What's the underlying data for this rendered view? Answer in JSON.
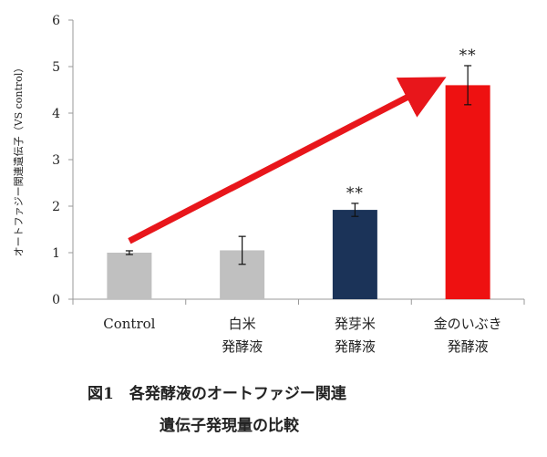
{
  "chart_data": {
    "type": "bar",
    "title": "",
    "xlabel": "",
    "ylabel": "オートファジー関連遺伝子（VS control）",
    "ylim": [
      0,
      6
    ],
    "yticks": [
      0,
      1,
      2,
      3,
      4,
      5,
      6
    ],
    "grid": false,
    "categories": [
      {
        "line1": "Control",
        "line2": ""
      },
      {
        "line1": "白米",
        "line2": "発酵液"
      },
      {
        "line1": "発芽米",
        "line2": "発酵液"
      },
      {
        "line1": "金のいぶき",
        "line2": "発酵液"
      }
    ],
    "values": [
      1.0,
      1.05,
      1.92,
      4.6
    ],
    "errors": [
      0.04,
      0.3,
      0.14,
      0.42
    ],
    "bar_colors": [
      "#c0c0c0",
      "#c0c0c0",
      "#1b3358",
      "#ee1111"
    ],
    "significance": [
      "",
      "",
      "**",
      "**"
    ],
    "trend_arrow": {
      "from_category": 0,
      "to_category": 3,
      "color": "#e8161b",
      "from_value": 1.25,
      "to_value": 4.65
    }
  },
  "caption": {
    "line1": "図1　各発酵液のオートファジー関連",
    "line2": "遺伝子発現量の比較"
  }
}
